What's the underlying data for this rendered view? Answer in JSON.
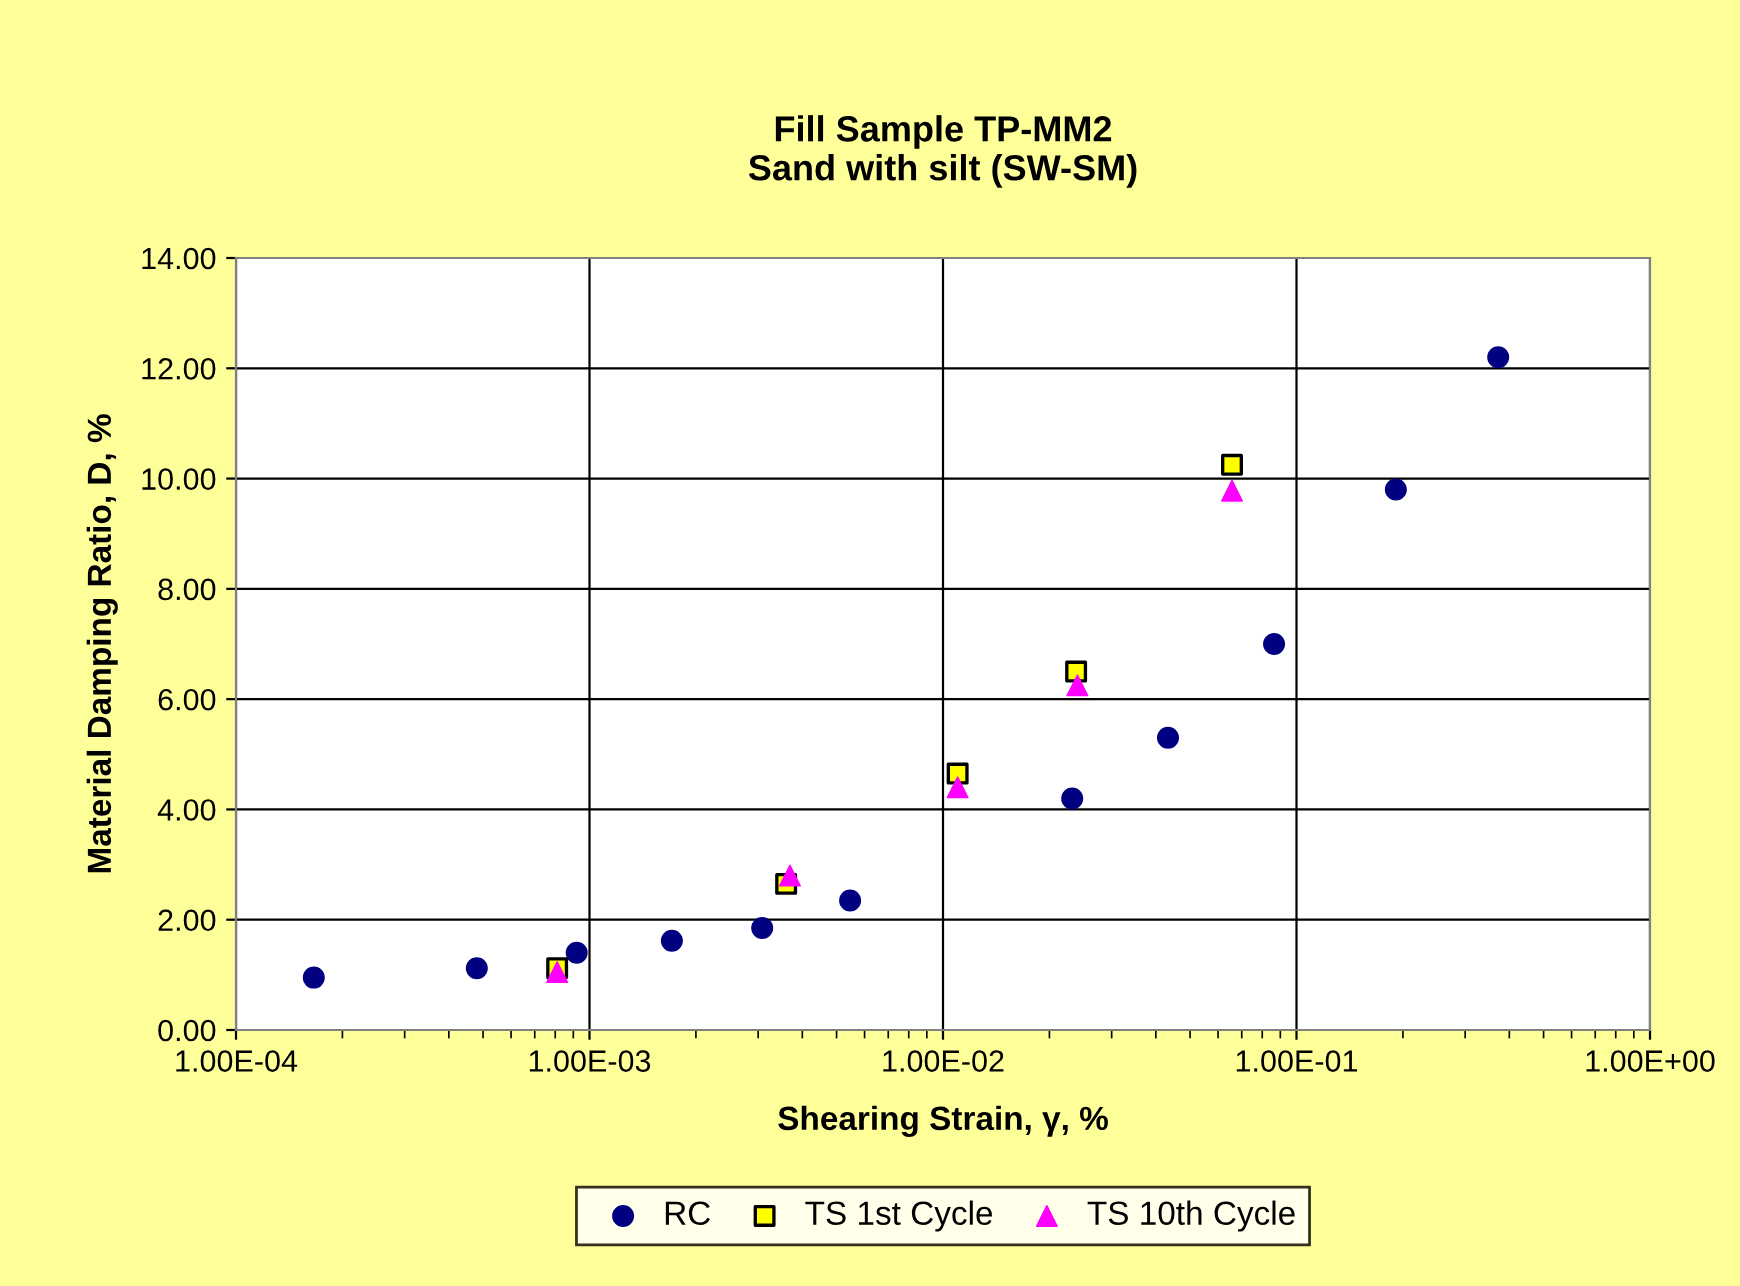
{
  "chart_data": {
    "type": "scatter",
    "title": "Fill Sample TP-MM2\nSand with silt (SW-SM)",
    "xlabel": "Shearing Strain, γ, %",
    "ylabel": "Material Damping Ratio, D, %",
    "log": "x",
    "xlim": [
      0.0001,
      1
    ],
    "xticks": [
      {
        "value": 0.0001,
        "label": "1.00E-04"
      },
      {
        "value": 0.001,
        "label": "1.00E-03"
      },
      {
        "value": 0.01,
        "label": "1.00E-02"
      },
      {
        "value": 0.1,
        "label": "1.00E-01"
      },
      {
        "value": 1,
        "label": "1.00E+00"
      }
    ],
    "ylim": [
      0,
      14
    ],
    "yticks": [
      {
        "value": 0,
        "label": "0.00"
      },
      {
        "value": 2,
        "label": "2.00"
      },
      {
        "value": 4,
        "label": "4.00"
      },
      {
        "value": 6,
        "label": "6.00"
      },
      {
        "value": 8,
        "label": "8.00"
      },
      {
        "value": 10,
        "label": "10.00"
      },
      {
        "value": 12,
        "label": "12.00"
      },
      {
        "value": 14,
        "label": "14.00"
      }
    ],
    "grid": true,
    "legend": "bottom",
    "series": [
      {
        "name": "RC",
        "color": "#000080",
        "marker": "circle",
        "x": [
          0.000166,
          0.00048,
          0.00092,
          0.00171,
          0.00308,
          0.00546,
          0.0232,
          0.0433,
          0.0864,
          0.191,
          0.372
        ],
        "values": [
          0.95,
          1.12,
          1.4,
          1.62,
          1.85,
          2.35,
          4.2,
          5.3,
          7.0,
          9.8,
          12.2
        ]
      },
      {
        "name": "TS 1st Cycle",
        "color": "#ffff00",
        "marker": "square",
        "x": [
          0.00081,
          0.0036,
          0.011,
          0.0238,
          0.0657
        ],
        "values": [
          1.12,
          2.65,
          4.65,
          6.5,
          10.25
        ]
      },
      {
        "name": "TS 10th Cycle",
        "color": "#ff00ff",
        "marker": "triangle",
        "x": [
          0.00081,
          0.00369,
          0.011,
          0.024,
          0.0657
        ],
        "values": [
          1.05,
          2.8,
          4.4,
          6.25,
          9.78
        ]
      }
    ]
  }
}
